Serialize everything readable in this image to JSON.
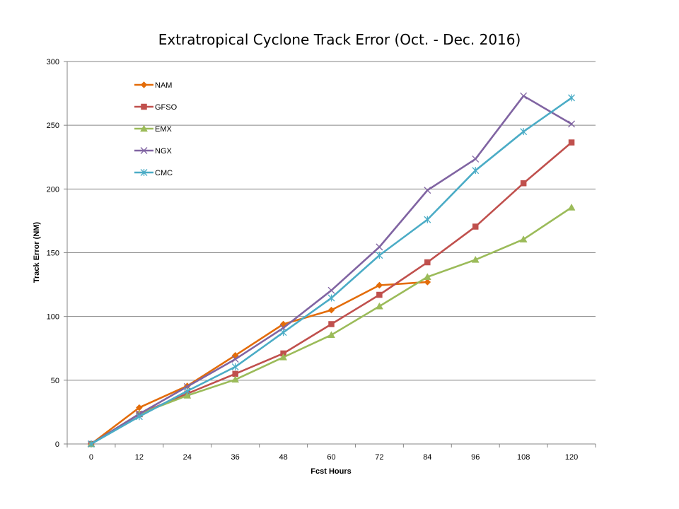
{
  "chart_data": {
    "type": "line",
    "title": "Extratropical Cyclone Track Error (Oct. - Dec. 2016)",
    "xlabel": "Fcst Hours",
    "ylabel": "Track Error  (NM)",
    "categories": [
      "0",
      "12",
      "24",
      "36",
      "48",
      "60",
      "72",
      "84",
      "96",
      "108",
      "120"
    ],
    "ylim": [
      0,
      300
    ],
    "yticks": [
      0,
      50,
      100,
      150,
      200,
      250,
      300
    ],
    "grid": true,
    "legend_position": "top-left",
    "series": [
      {
        "name": "NAM",
        "color": "#E36C09",
        "marker": "diamond",
        "values": [
          0,
          28.5,
          45.5,
          69.5,
          94,
          105,
          124.5,
          127,
          null,
          null,
          null
        ]
      },
      {
        "name": "GFSO",
        "color": "#C0504D",
        "marker": "square",
        "values": [
          0,
          23.5,
          39.5,
          55,
          71,
          94,
          117,
          142.5,
          170.5,
          204.5,
          236.5
        ]
      },
      {
        "name": "EMX",
        "color": "#9BBB59",
        "marker": "triangle",
        "values": [
          0,
          23.5,
          38,
          50.5,
          68,
          85.5,
          108,
          131,
          144.5,
          160.5,
          185.5
        ]
      },
      {
        "name": "NGX",
        "color": "#8064A2",
        "marker": "x",
        "values": [
          0,
          23.5,
          45,
          66.5,
          91,
          120.5,
          154.5,
          199,
          223.5,
          273,
          251
        ]
      },
      {
        "name": "CMC",
        "color": "#4BACC6",
        "marker": "star",
        "values": [
          0,
          21.5,
          41.5,
          60.5,
          87.5,
          114.5,
          148,
          176,
          214.5,
          245,
          271.5
        ]
      }
    ]
  }
}
